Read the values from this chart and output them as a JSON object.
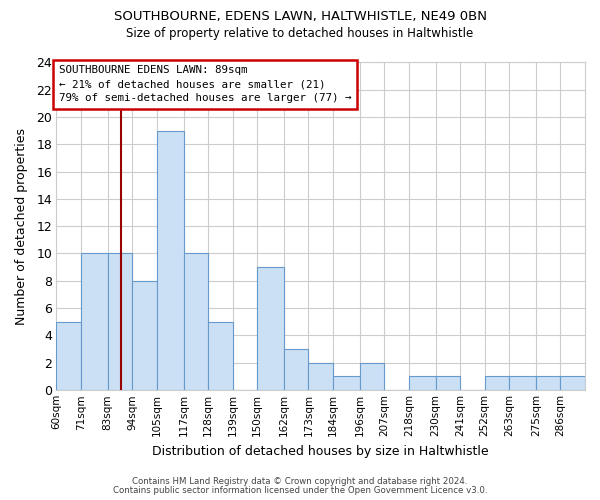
{
  "title1": "SOUTHBOURNE, EDENS LAWN, HALTWHISTLE, NE49 0BN",
  "title2": "Size of property relative to detached houses in Haltwhistle",
  "xlabel": "Distribution of detached houses by size in Haltwhistle",
  "ylabel": "Number of detached properties",
  "bar_color": "#cce0f5",
  "bar_edge_color": "#6699cc",
  "bin_labels": [
    "60sqm",
    "71sqm",
    "83sqm",
    "94sqm",
    "105sqm",
    "117sqm",
    "128sqm",
    "139sqm",
    "150sqm",
    "162sqm",
    "173sqm",
    "184sqm",
    "196sqm",
    "207sqm",
    "218sqm",
    "230sqm",
    "241sqm",
    "252sqm",
    "263sqm",
    "275sqm",
    "286sqm"
  ],
  "bin_counts": [
    5,
    10,
    10,
    8,
    19,
    10,
    5,
    0,
    9,
    3,
    2,
    1,
    2,
    0,
    1,
    1,
    0,
    1,
    1,
    1,
    1
  ],
  "ylim": [
    0,
    24
  ],
  "yticks": [
    0,
    2,
    4,
    6,
    8,
    10,
    12,
    14,
    16,
    18,
    20,
    22,
    24
  ],
  "property_line_color": "#990000",
  "annotation_title": "SOUTHBOURNE EDENS LAWN: 89sqm",
  "annotation_line1": "← 21% of detached houses are smaller (21)",
  "annotation_line2": "79% of semi-detached houses are larger (77) →",
  "annotation_box_color": "#ffffff",
  "annotation_box_edge": "#cc0000",
  "footer1": "Contains HM Land Registry data © Crown copyright and database right 2024.",
  "footer2": "Contains public sector information licensed under the Open Government Licence v3.0.",
  "background_color": "#ffffff",
  "plot_background": "#ffffff",
  "grid_color": "#cccccc",
  "bin_edges": [
    60,
    71,
    83,
    94,
    105,
    117,
    128,
    139,
    150,
    162,
    173,
    184,
    196,
    207,
    218,
    230,
    241,
    252,
    263,
    275,
    286,
    297
  ]
}
